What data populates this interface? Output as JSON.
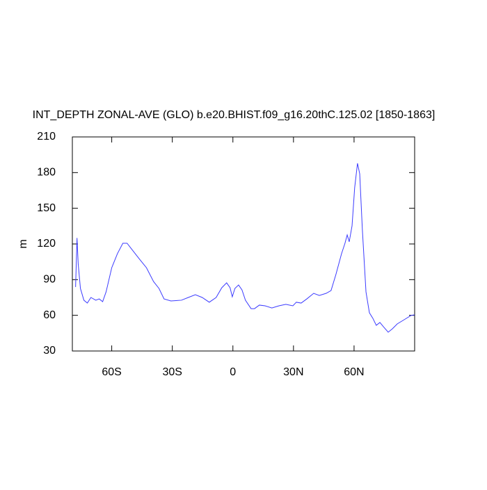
{
  "chart_data": {
    "type": "line",
    "title": "INT_DEPTH ZONAL-AVE (GLO) b.e20.BHIST.f09_g16.20thC.125.02 [1850-1863]",
    "y_label": "m",
    "x": [
      -77.9,
      -77.2,
      -76.6,
      -75.5,
      -73.8,
      -72.1,
      -70.3,
      -67.9,
      -66.2,
      -64.5,
      -62.8,
      -60,
      -57.2,
      -54.5,
      -52.4,
      -49.7,
      -46.2,
      -42.8,
      -39.3,
      -36.6,
      -34.1,
      -30.7,
      -25.5,
      -22.1,
      -18.6,
      -15.2,
      -11.7,
      -8.3,
      -5.5,
      -3.1,
      -1.4,
      -0.3,
      1,
      2.8,
      4.5,
      6.2,
      9,
      10.7,
      13.1,
      15.9,
      19.3,
      22.8,
      26.2,
      29.7,
      31.4,
      33.8,
      36.6,
      40,
      42.8,
      46.2,
      48.6,
      51,
      53.8,
      55.5,
      56.6,
      57.6,
      59,
      60.3,
      61.7,
      62.8,
      64.1,
      65.9,
      67.6,
      69.3,
      71,
      72.8,
      74.5,
      76.9,
      79,
      81.4,
      84.8,
      88.3,
      90
    ],
    "series": [
      {
        "color": "#3b3bff",
        "values": [
          83.8,
          125,
          103,
          82.6,
          72.7,
          70.3,
          75,
          72.7,
          73.8,
          71.5,
          79.7,
          100,
          111.8,
          120.6,
          120.6,
          114.7,
          107.1,
          100,
          88.4,
          82.6,
          73.8,
          72.1,
          72.7,
          75,
          77.3,
          75,
          71,
          75,
          83.2,
          87.3,
          83.2,
          75.6,
          82.6,
          85.5,
          81.4,
          72.7,
          65.6,
          65.6,
          68.6,
          68,
          66.2,
          68,
          69.2,
          68,
          71,
          70.3,
          73.8,
          78.5,
          76.7,
          78.5,
          80.8,
          94.3,
          111.8,
          120.6,
          127.6,
          121.8,
          135.2,
          167.3,
          187.8,
          179,
          132.3,
          79.7,
          62.1,
          57.5,
          51.6,
          54,
          50.5,
          45.8,
          48.7,
          52.8,
          56.3,
          60,
          60.4
        ]
      }
    ],
    "xlim": [
      -79.5,
      90
    ],
    "xticks": [
      {
        "value": -60,
        "label": "60S"
      },
      {
        "value": -30,
        "label": "30S"
      },
      0,
      {
        "value": 30,
        "label": "30N"
      },
      {
        "value": 60,
        "label": "60N"
      }
    ],
    "ylim": [
      30,
      210
    ],
    "yticks": [
      30,
      60,
      90,
      120,
      150,
      180,
      210
    ]
  }
}
